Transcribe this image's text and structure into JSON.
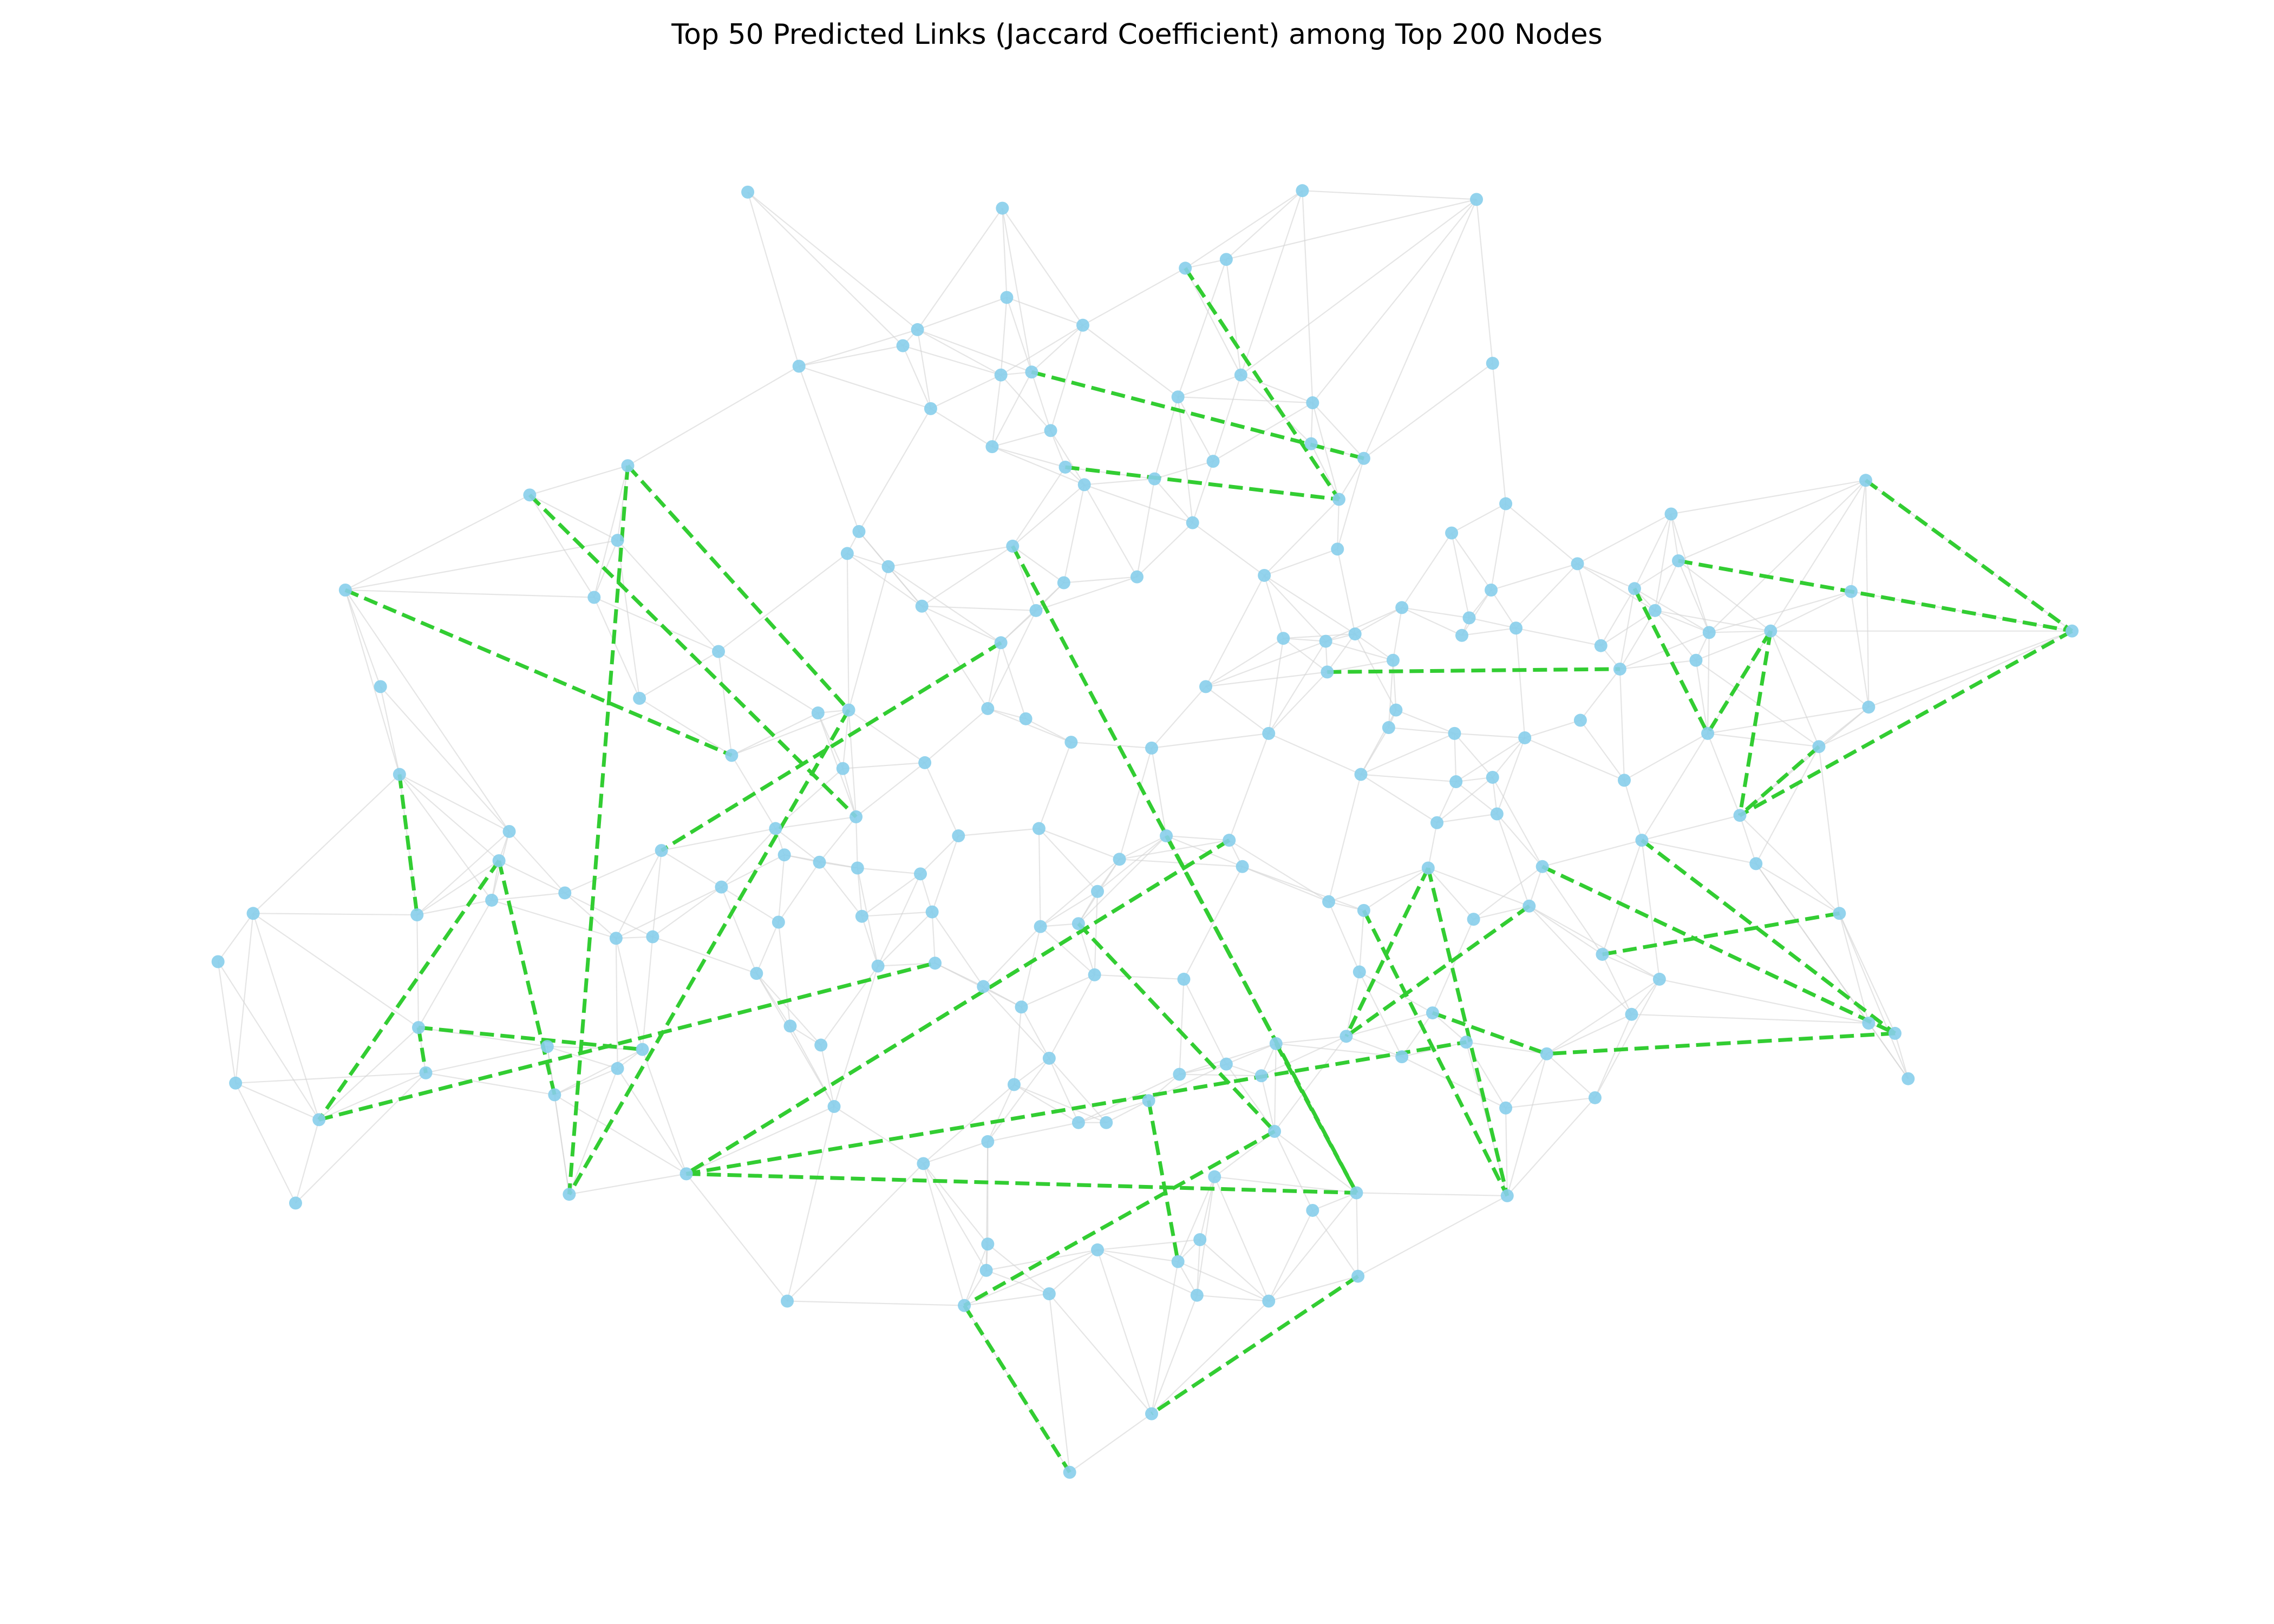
{
  "figure": {
    "title": "Top 50 Predicted Links (Jaccard Coefficient) among Top 200 Nodes"
  },
  "colors": {
    "node": "#87ceeb",
    "edge": "#d3d3d3",
    "predicted_link": "#32cd32",
    "background": "#ffffff"
  }
}
